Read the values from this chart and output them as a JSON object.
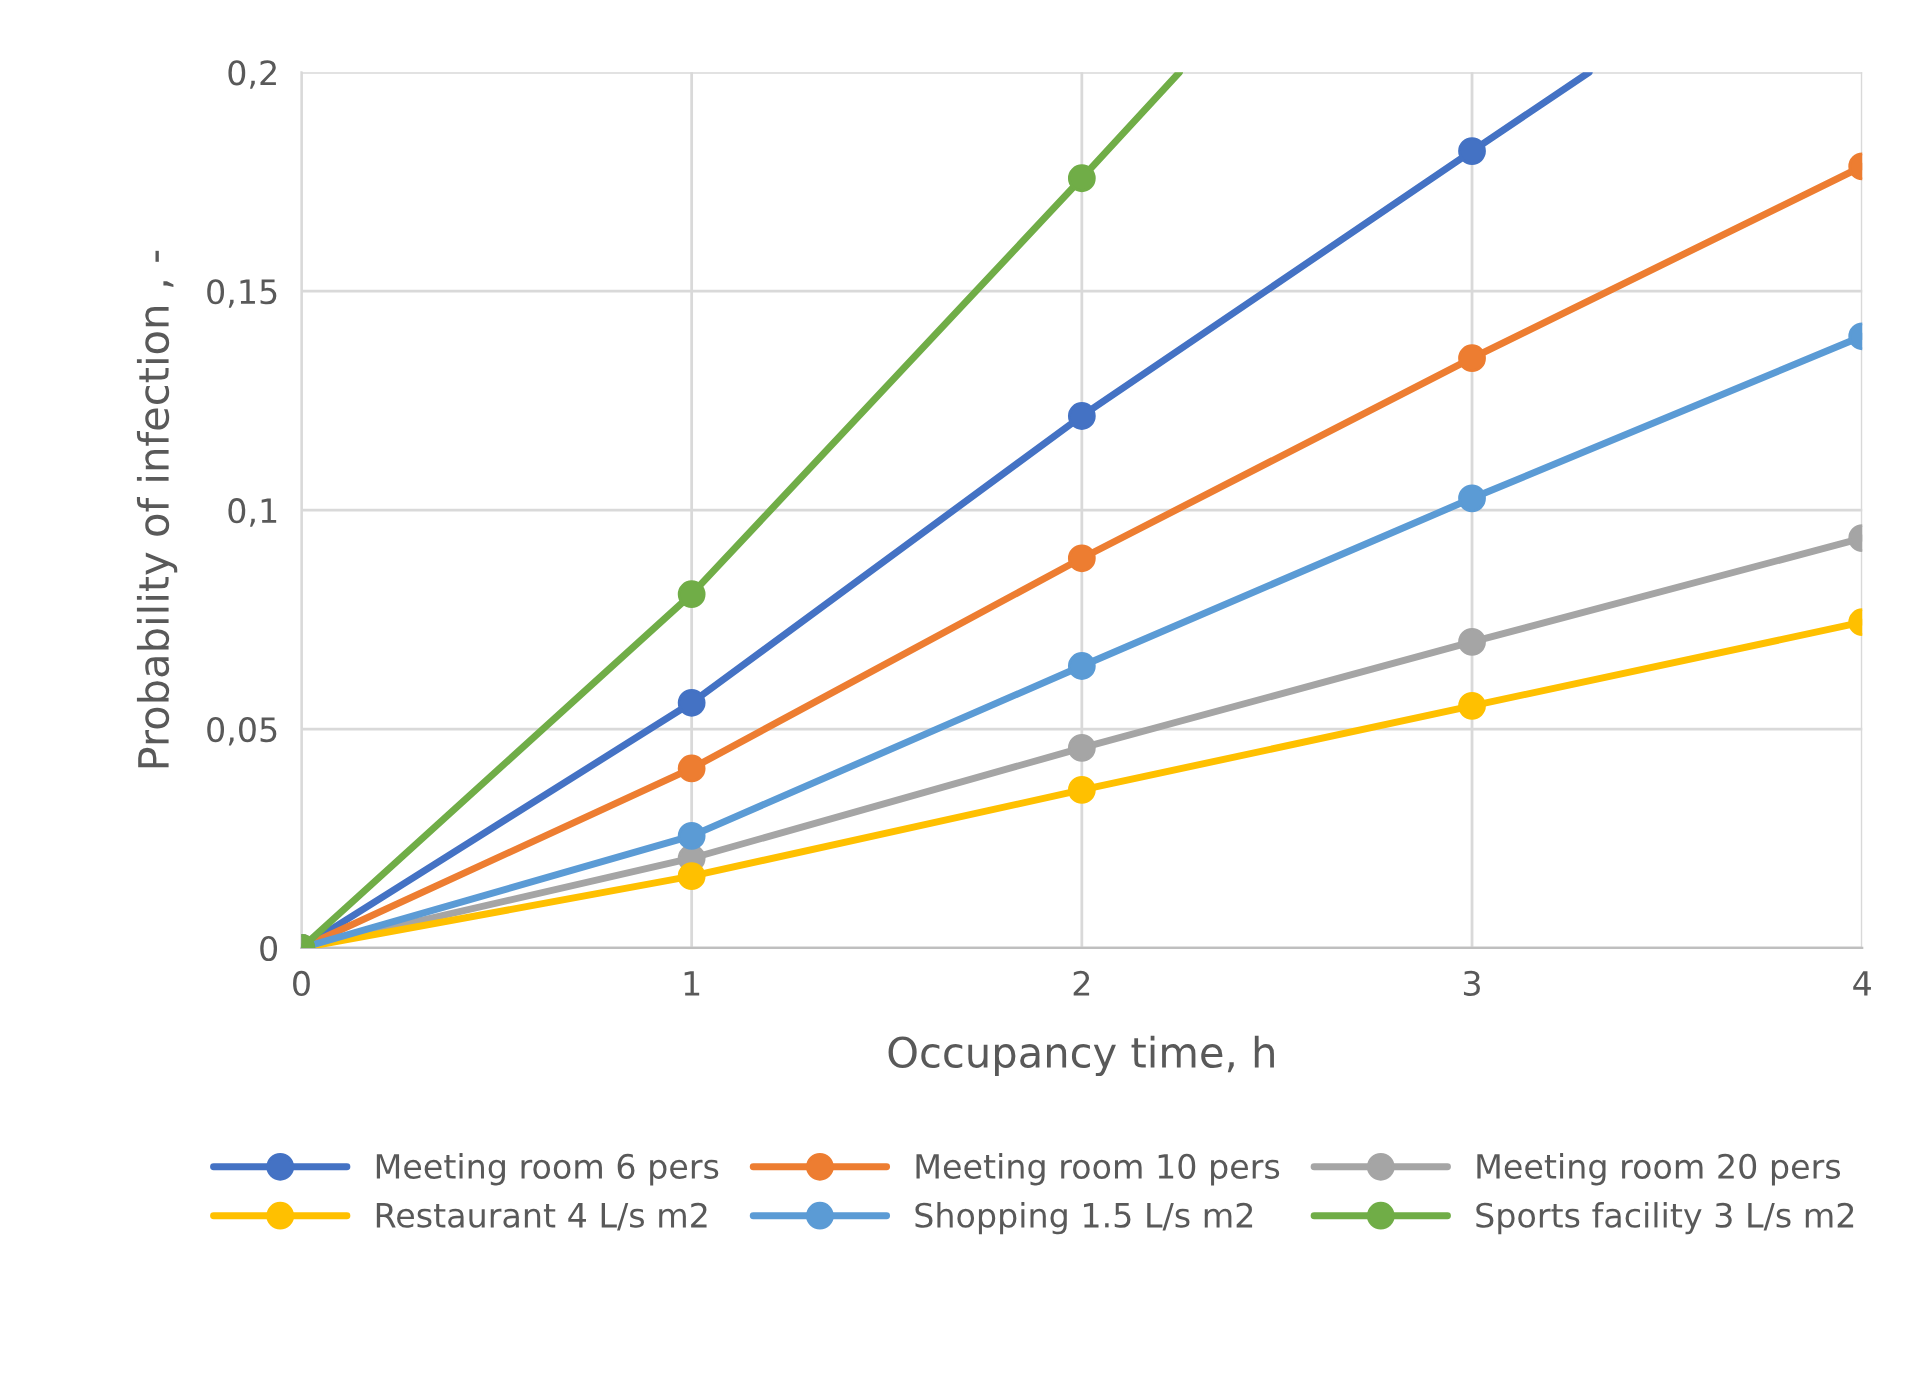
{
  "chart_data": {
    "type": "line",
    "xlabel": "Occupancy time, h",
    "ylabel": "Probability of infection , -",
    "x": [
      0,
      1,
      2,
      3,
      4
    ],
    "xlim": [
      0,
      4
    ],
    "xticks": [
      0,
      1,
      2,
      3,
      4
    ],
    "ylim": [
      0,
      0.2
    ],
    "yticks": [
      {
        "value": 0,
        "label": "0"
      },
      {
        "value": 0.05,
        "label": "0,05"
      },
      {
        "value": 0.1,
        "label": "0,1"
      },
      {
        "value": 0.15,
        "label": "0,15"
      },
      {
        "value": 0.2,
        "label": "0,2"
      }
    ],
    "grid": true,
    "legend": "bottom",
    "marker": "circle",
    "line_style": "solid",
    "series": [
      {
        "name": "Meeting room 6 pers",
        "color": "#4472c4",
        "x": [
          0,
          1,
          2,
          3,
          3.3
        ],
        "values": [
          0,
          0.056,
          0.1215,
          0.182,
          0.2
        ]
      },
      {
        "name": "Meeting room 10 pers",
        "color": "#ed7d31",
        "values": [
          0,
          0.041,
          0.089,
          0.1347,
          0.1785
        ]
      },
      {
        "name": "Meeting room 20 pers",
        "color": "#a5a5a5",
        "values": [
          0,
          0.0205,
          0.0457,
          0.0699,
          0.0936
        ]
      },
      {
        "name": "Restaurant 4 L/s m2",
        "color": "#ffc000",
        "values": [
          0,
          0.0164,
          0.0361,
          0.0553,
          0.0744
        ]
      },
      {
        "name": "Shopping 1.5 L/s m2",
        "color": "#5b9bd5",
        "values": [
          0,
          0.0256,
          0.0644,
          0.1027,
          0.1397
        ]
      },
      {
        "name": "Sports facility 3 L/s m2",
        "color": "#70ad47",
        "x": [
          0,
          1,
          2,
          2.25
        ],
        "values": [
          0,
          0.0808,
          0.1758,
          0.2
        ]
      }
    ]
  }
}
